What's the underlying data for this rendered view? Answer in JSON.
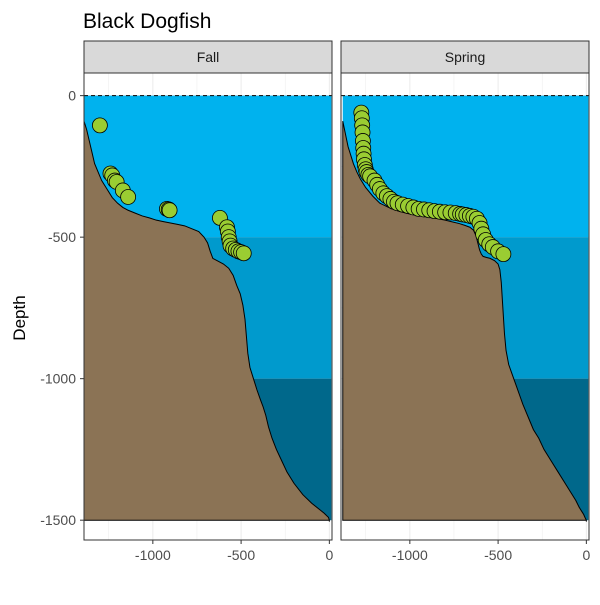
{
  "chart_data": {
    "type": "scatter",
    "title": "Black Dogfish",
    "ylabel": "Depth",
    "xlabel": "",
    "xlim": [
      -1390,
      15
    ],
    "ylim": [
      -1570,
      80
    ],
    "x_ticks": [
      -1000,
      -500,
      0
    ],
    "x_tick_labels": [
      "-1000",
      "-500",
      "0"
    ],
    "y_ticks": [
      0,
      -500,
      -1000,
      -1500
    ],
    "y_tick_labels": [
      "0",
      "-500",
      "-1000",
      "-1500"
    ],
    "grid": true,
    "legend": "none",
    "surface_line": 0,
    "water_bands": [
      {
        "top": 0,
        "bottom": -500,
        "color": "#00B2EE"
      },
      {
        "top": -500,
        "bottom": -1000,
        "color": "#009ACD"
      },
      {
        "top": -1000,
        "bottom": -1500,
        "color": "#00688B"
      }
    ],
    "colors": {
      "seafloor": "#8B7355",
      "point_fill": "#9ACD32",
      "strip_bg": "#D9D9D9"
    },
    "panels": [
      {
        "name": "Fall",
        "seafloor": [
          [
            -1390,
            -90
          ],
          [
            -1375,
            -120
          ],
          [
            -1360,
            -160
          ],
          [
            -1345,
            -200
          ],
          [
            -1330,
            -240
          ],
          [
            -1310,
            -270
          ],
          [
            -1290,
            -300
          ],
          [
            -1260,
            -330
          ],
          [
            -1230,
            -360
          ],
          [
            -1200,
            -380
          ],
          [
            -1170,
            -395
          ],
          [
            -1140,
            -405
          ],
          [
            -1100,
            -415
          ],
          [
            -1060,
            -425
          ],
          [
            -1020,
            -432
          ],
          [
            -980,
            -440
          ],
          [
            -940,
            -445
          ],
          [
            -900,
            -450
          ],
          [
            -860,
            -455
          ],
          [
            -820,
            -460
          ],
          [
            -780,
            -470
          ],
          [
            -740,
            -480
          ],
          [
            -710,
            -500
          ],
          [
            -690,
            -520
          ],
          [
            -675,
            -550
          ],
          [
            -660,
            -575
          ],
          [
            -630,
            -585
          ],
          [
            -600,
            -595
          ],
          [
            -570,
            -610
          ],
          [
            -545,
            -635
          ],
          [
            -525,
            -670
          ],
          [
            -505,
            -700
          ],
          [
            -490,
            -740
          ],
          [
            -478,
            -790
          ],
          [
            -470,
            -850
          ],
          [
            -462,
            -910
          ],
          [
            -450,
            -960
          ],
          [
            -430,
            -1000
          ],
          [
            -410,
            -1040
          ],
          [
            -390,
            -1075
          ],
          [
            -375,
            -1100
          ],
          [
            -360,
            -1130
          ],
          [
            -345,
            -1170
          ],
          [
            -325,
            -1210
          ],
          [
            -300,
            -1250
          ],
          [
            -270,
            -1290
          ],
          [
            -240,
            -1330
          ],
          [
            -200,
            -1370
          ],
          [
            -150,
            -1410
          ],
          [
            -100,
            -1440
          ],
          [
            -60,
            -1460
          ],
          [
            -30,
            -1475
          ],
          [
            -5,
            -1490
          ],
          [
            0,
            -1500
          ],
          [
            0,
            -1505
          ]
        ],
        "points": [
          {
            "x": -1300,
            "y": -105
          },
          {
            "x": -1240,
            "y": -275
          },
          {
            "x": -1230,
            "y": -282
          },
          {
            "x": -1215,
            "y": -300
          },
          {
            "x": -1205,
            "y": -305
          },
          {
            "x": -1170,
            "y": -335
          },
          {
            "x": -1140,
            "y": -358
          },
          {
            "x": -920,
            "y": -400
          },
          {
            "x": -910,
            "y": -402
          },
          {
            "x": -905,
            "y": -405
          },
          {
            "x": -620,
            "y": -432
          },
          {
            "x": -580,
            "y": -465
          },
          {
            "x": -575,
            "y": -480
          },
          {
            "x": -570,
            "y": -500
          },
          {
            "x": -565,
            "y": -515
          },
          {
            "x": -560,
            "y": -530
          },
          {
            "x": -545,
            "y": -540
          },
          {
            "x": -530,
            "y": -545
          },
          {
            "x": -515,
            "y": -550
          },
          {
            "x": -500,
            "y": -553
          },
          {
            "x": -485,
            "y": -557
          }
        ]
      },
      {
        "name": "Spring",
        "seafloor": [
          [
            -1380,
            -90
          ],
          [
            -1370,
            -120
          ],
          [
            -1360,
            -150
          ],
          [
            -1350,
            -180
          ],
          [
            -1335,
            -210
          ],
          [
            -1320,
            -240
          ],
          [
            -1300,
            -270
          ],
          [
            -1280,
            -295
          ],
          [
            -1250,
            -325
          ],
          [
            -1210,
            -355
          ],
          [
            -1170,
            -380
          ],
          [
            -1120,
            -395
          ],
          [
            -1080,
            -405
          ],
          [
            -1040,
            -412
          ],
          [
            -1000,
            -418
          ],
          [
            -960,
            -422
          ],
          [
            -920,
            -426
          ],
          [
            -880,
            -430
          ],
          [
            -840,
            -435
          ],
          [
            -800,
            -440
          ],
          [
            -760,
            -446
          ],
          [
            -720,
            -452
          ],
          [
            -690,
            -458
          ],
          [
            -660,
            -465
          ],
          [
            -640,
            -475
          ],
          [
            -625,
            -495
          ],
          [
            -615,
            -520
          ],
          [
            -605,
            -545
          ],
          [
            -595,
            -560
          ],
          [
            -585,
            -568
          ],
          [
            -565,
            -572
          ],
          [
            -545,
            -575
          ],
          [
            -520,
            -583
          ],
          [
            -500,
            -595
          ],
          [
            -490,
            -615
          ],
          [
            -482,
            -660
          ],
          [
            -476,
            -720
          ],
          [
            -470,
            -780
          ],
          [
            -464,
            -840
          ],
          [
            -455,
            -900
          ],
          [
            -440,
            -950
          ],
          [
            -420,
            -985
          ],
          [
            -400,
            -1020
          ],
          [
            -380,
            -1055
          ],
          [
            -360,
            -1090
          ],
          [
            -340,
            -1120
          ],
          [
            -320,
            -1150
          ],
          [
            -300,
            -1180
          ],
          [
            -270,
            -1210
          ],
          [
            -240,
            -1250
          ],
          [
            -200,
            -1290
          ],
          [
            -160,
            -1330
          ],
          [
            -120,
            -1370
          ],
          [
            -90,
            -1400
          ],
          [
            -60,
            -1430
          ],
          [
            -40,
            -1455
          ],
          [
            -25,
            -1470
          ],
          [
            -15,
            -1480
          ],
          [
            -8,
            -1490
          ],
          [
            0,
            -1500
          ],
          [
            0,
            -1505
          ]
        ],
        "points": [
          {
            "x": -1275,
            "y": -60
          },
          {
            "x": -1272,
            "y": -80
          },
          {
            "x": -1270,
            "y": -105
          },
          {
            "x": -1268,
            "y": -130
          },
          {
            "x": -1266,
            "y": -160
          },
          {
            "x": -1264,
            "y": -185
          },
          {
            "x": -1262,
            "y": -205
          },
          {
            "x": -1260,
            "y": -225
          },
          {
            "x": -1255,
            "y": -245
          },
          {
            "x": -1250,
            "y": -260
          },
          {
            "x": -1245,
            "y": -270
          },
          {
            "x": -1235,
            "y": -280
          },
          {
            "x": -1225,
            "y": -285
          },
          {
            "x": -1200,
            "y": -300
          },
          {
            "x": -1185,
            "y": -315
          },
          {
            "x": -1170,
            "y": -330
          },
          {
            "x": -1150,
            "y": -345
          },
          {
            "x": -1130,
            "y": -355
          },
          {
            "x": -1110,
            "y": -365
          },
          {
            "x": -1090,
            "y": -375
          },
          {
            "x": -1070,
            "y": -380
          },
          {
            "x": -1040,
            "y": -385
          },
          {
            "x": -1010,
            "y": -390
          },
          {
            "x": -980,
            "y": -395
          },
          {
            "x": -950,
            "y": -400
          },
          {
            "x": -920,
            "y": -402
          },
          {
            "x": -890,
            "y": -405
          },
          {
            "x": -860,
            "y": -408
          },
          {
            "x": -830,
            "y": -410
          },
          {
            "x": -800,
            "y": -412
          },
          {
            "x": -770,
            "y": -413
          },
          {
            "x": -740,
            "y": -415
          },
          {
            "x": -715,
            "y": -418
          },
          {
            "x": -700,
            "y": -420
          },
          {
            "x": -680,
            "y": -422
          },
          {
            "x": -660,
            "y": -425
          },
          {
            "x": -640,
            "y": -428
          },
          {
            "x": -620,
            "y": -435
          },
          {
            "x": -605,
            "y": -450
          },
          {
            "x": -595,
            "y": -470
          },
          {
            "x": -585,
            "y": -490
          },
          {
            "x": -570,
            "y": -510
          },
          {
            "x": -550,
            "y": -525
          },
          {
            "x": -530,
            "y": -535
          },
          {
            "x": -500,
            "y": -550
          },
          {
            "x": -470,
            "y": -560
          }
        ]
      }
    ]
  }
}
